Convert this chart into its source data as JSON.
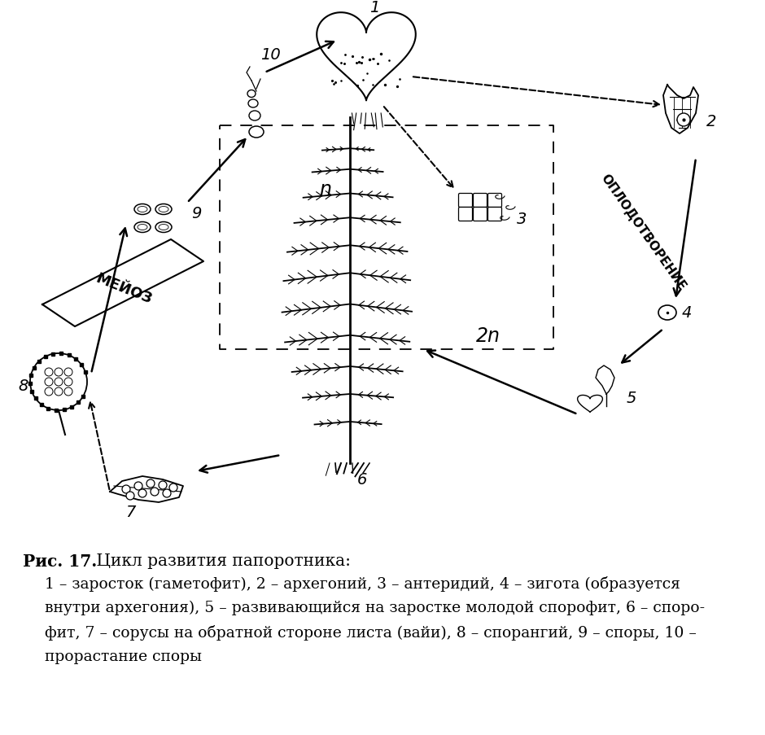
{
  "bg_color": "#ffffff",
  "text_color": "#000000",
  "label_n": "n",
  "label_2n": "2n",
  "label_meioz": "МЕЙОЗ",
  "label_oplod": "ОПЛОДОТВОРЕНИЕ",
  "caption_title_bold": "Рис. 17.",
  "caption_title_rest": " Цикл развития папоротника:",
  "caption_line1": "1 – заросток (гаметофит), 2 – архегоний, 3 – антеридий, 4 – зигота (образуется",
  "caption_line2": "внутри архегония), 5 – развивающийся на заростке молодой спорофит, 6 – споро-",
  "caption_line3": "фит, 7 – сорусы на обратной стороне листа (вайи), 8 – спорангий, 9 – споры, 10 –",
  "caption_line4": "прорастание споры",
  "figsize": [
    9.4,
    9.04
  ],
  "dpi": 100
}
